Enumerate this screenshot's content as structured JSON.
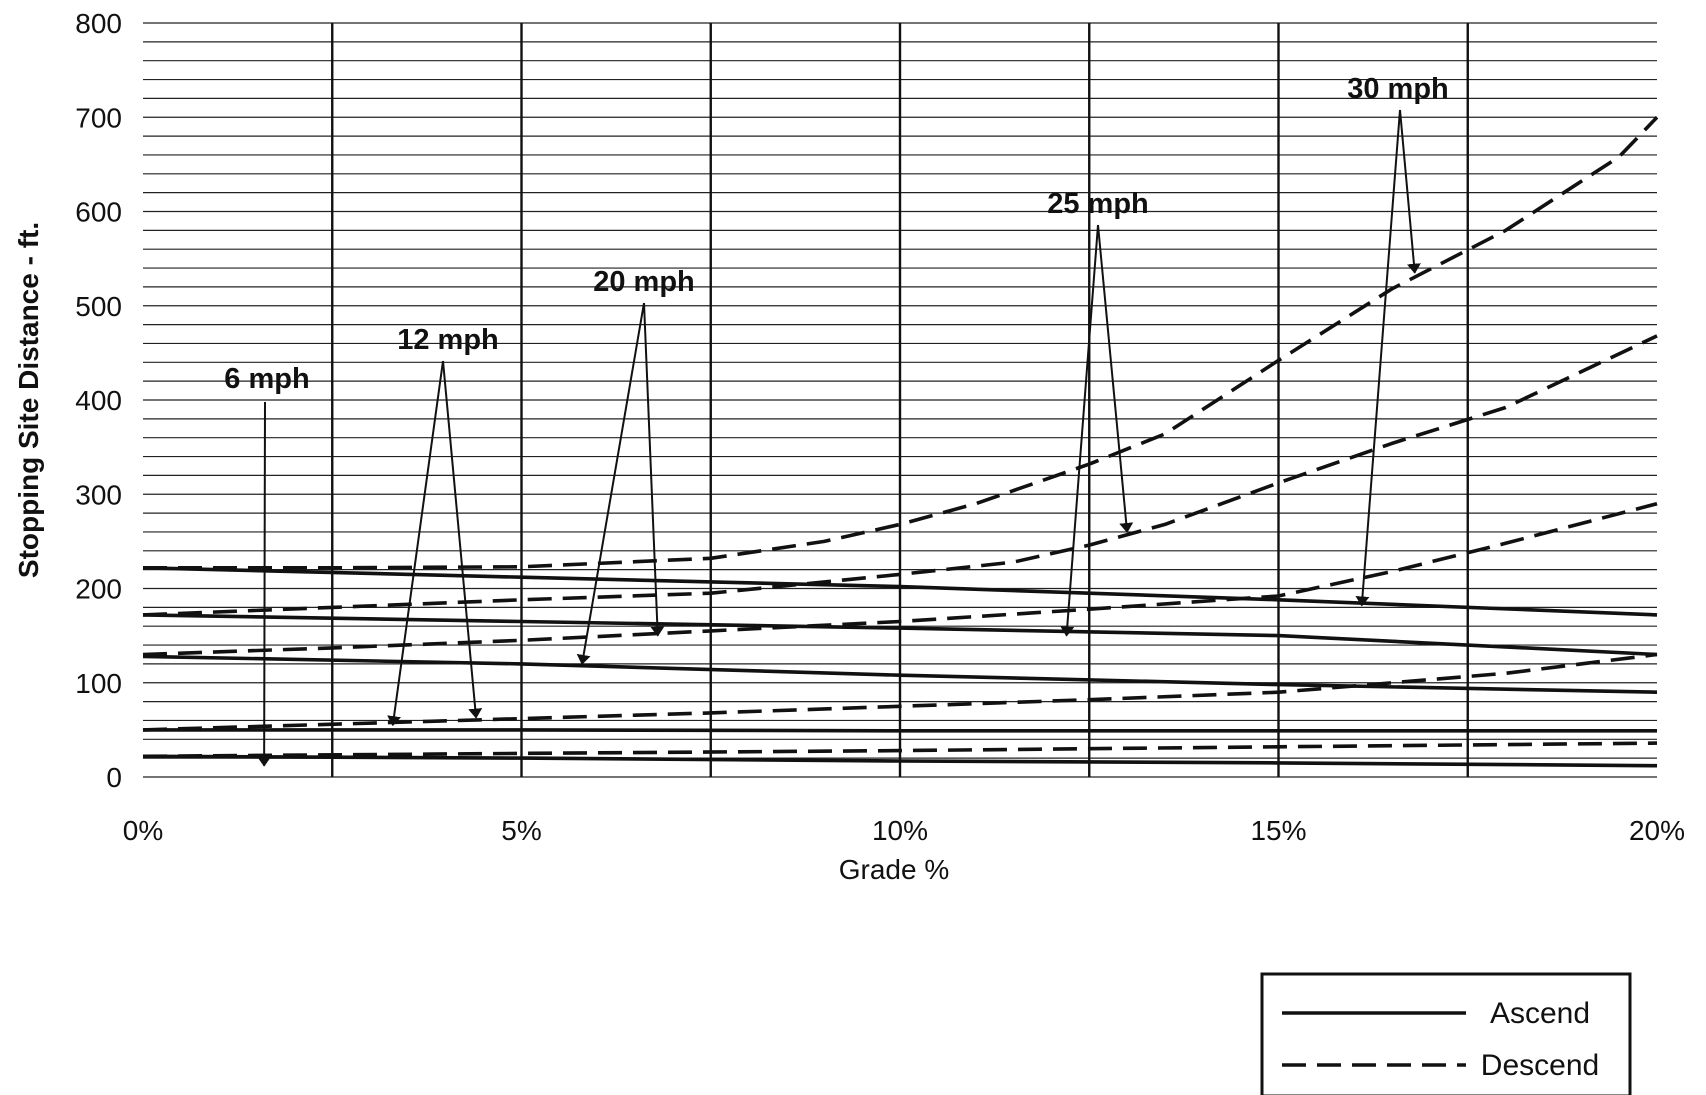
{
  "chart_data": {
    "type": "line",
    "title": "",
    "xlabel": "Grade %",
    "ylabel": "Stopping Site Distance - ft.",
    "xlim": [
      0,
      20
    ],
    "ylim": [
      0,
      800
    ],
    "x_ticks": [
      "0%",
      "5%",
      "10%",
      "15%",
      "20%"
    ],
    "y_ticks": [
      "0",
      "100",
      "200",
      "300",
      "400",
      "500",
      "600",
      "700",
      "800"
    ],
    "grid": true,
    "legend_position": "bottom-right",
    "legend": [
      {
        "label": "Ascend",
        "style": "solid"
      },
      {
        "label": "Descend",
        "style": "dashed"
      }
    ],
    "series": [
      {
        "name": "6 mph Ascend",
        "style": "solid",
        "x": [
          0,
          5,
          10,
          15,
          20
        ],
        "y": [
          22,
          20,
          17,
          15,
          12
        ]
      },
      {
        "name": "6 mph Descend",
        "style": "dashed",
        "x": [
          0,
          5,
          10,
          15,
          20
        ],
        "y": [
          22,
          25,
          28,
          32,
          36
        ]
      },
      {
        "name": "12 mph Ascend",
        "style": "solid",
        "x": [
          0,
          5,
          10,
          15,
          20
        ],
        "y": [
          50,
          50,
          49,
          49,
          49
        ]
      },
      {
        "name": "12 mph Descend",
        "style": "dashed",
        "x": [
          0,
          5,
          7.5,
          10,
          12.5,
          15,
          16.5,
          18,
          20
        ],
        "y": [
          50,
          62,
          68,
          75,
          82,
          90,
          100,
          110,
          130
        ]
      },
      {
        "name": "20 mph Ascend",
        "style": "solid",
        "x": [
          0,
          5,
          10,
          15,
          20
        ],
        "y": [
          128,
          120,
          108,
          98,
          90
        ]
      },
      {
        "name": "20 mph Descend",
        "style": "dashed",
        "x": [
          0,
          2.5,
          5,
          7.5,
          10,
          12.5,
          15,
          16.5,
          18,
          20
        ],
        "y": [
          130,
          137,
          145,
          155,
          165,
          178,
          192,
          218,
          248,
          290
        ]
      },
      {
        "name": "25 mph Ascend",
        "style": "solid",
        "x": [
          0,
          5,
          10,
          15,
          20
        ],
        "y": [
          172,
          165,
          158,
          150,
          130
        ]
      },
      {
        "name": "25 mph Descend",
        "style": "dashed",
        "x": [
          0,
          2.5,
          5,
          7.5,
          10,
          11.5,
          12.5,
          13.5,
          15,
          16.5,
          18,
          20
        ],
        "y": [
          172,
          180,
          188,
          195,
          215,
          228,
          246,
          268,
          312,
          354,
          392,
          468
        ]
      },
      {
        "name": "30 mph Ascend",
        "style": "solid",
        "x": [
          0,
          5,
          10,
          15,
          20
        ],
        "y": [
          222,
          212,
          202,
          188,
          172
        ]
      },
      {
        "name": "30 mph Descend",
        "style": "dashed",
        "x": [
          0,
          2.5,
          5,
          7.5,
          9,
          10,
          11,
          12.5,
          13.5,
          15,
          16.5,
          18,
          19.5,
          20
        ],
        "y": [
          222,
          222,
          223,
          232,
          250,
          268,
          290,
          332,
          364,
          442,
          518,
          580,
          658,
          700
        ]
      }
    ],
    "annotations": [
      {
        "text": "6 mph",
        "targets": [
          [
            1.6,
            12
          ]
        ]
      },
      {
        "text": "12 mph",
        "targets": [
          [
            3.3,
            55
          ],
          [
            4.4,
            63
          ]
        ]
      },
      {
        "text": "20 mph",
        "targets": [
          [
            5.8,
            120
          ],
          [
            6.8,
            150
          ]
        ]
      },
      {
        "text": "25 mph",
        "targets": [
          [
            12.2,
            150
          ],
          [
            13,
            260
          ]
        ]
      },
      {
        "text": "30 mph",
        "targets": [
          [
            16.1,
            182
          ],
          [
            16.8,
            535
          ]
        ]
      }
    ]
  }
}
